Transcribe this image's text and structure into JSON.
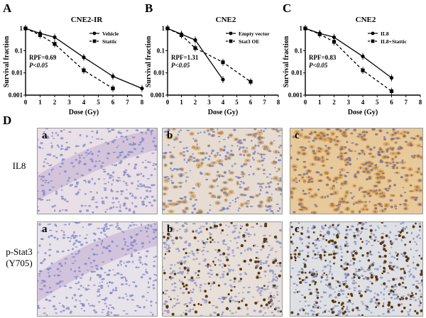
{
  "figure": {
    "panel_D_label": "D",
    "row_labels": [
      "IL8",
      "p-Stat3",
      "(Y705)"
    ],
    "sub_labels": [
      "a",
      "b",
      "c",
      "a",
      "b",
      "c"
    ]
  },
  "chart_data": [
    {
      "type": "line",
      "panel": "A",
      "title": "CNE2-IR",
      "xlabel": "Dose (Gy)",
      "ylabel": "Survival fraction",
      "xlim": [
        0,
        8
      ],
      "ylim": [
        0.001,
        1
      ],
      "yscale": "log",
      "xticks": [
        "0",
        "1",
        "2",
        "3",
        "4",
        "5",
        "6",
        "7",
        "8"
      ],
      "yticks": [
        "0.001",
        "0.01",
        "0.1",
        "1"
      ],
      "legend_position": "top-right",
      "annotation": [
        "RPF=0.69",
        "P<0.05"
      ],
      "series": [
        {
          "name": "Vehicle",
          "marker": "circle",
          "line": "solid",
          "x": [
            0,
            1,
            2,
            4,
            6,
            8
          ],
          "y": [
            1,
            0.6,
            0.4,
            0.05,
            0.007,
            0.002
          ]
        },
        {
          "name": "Stattic",
          "marker": "square",
          "line": "dashed",
          "x": [
            0,
            1,
            2,
            4,
            6
          ],
          "y": [
            1,
            0.5,
            0.2,
            0.013,
            0.002
          ]
        }
      ]
    },
    {
      "type": "line",
      "panel": "B",
      "title": "CNE2",
      "xlabel": "Dose (Gy)",
      "ylabel": "Survival fraction",
      "xlim": [
        0,
        8
      ],
      "ylim": [
        0.001,
        1
      ],
      "yscale": "log",
      "xticks": [
        "0",
        "1",
        "2",
        "3",
        "4",
        "5",
        "6",
        "7",
        "8"
      ],
      "yticks": [
        "0.001",
        "0.01",
        "0.1",
        "1"
      ],
      "legend_position": "top-right",
      "annotation": [
        "RPF=1.31",
        "P<0.05"
      ],
      "series": [
        {
          "name": "Empty vector",
          "marker": "circle",
          "line": "solid",
          "x": [
            0,
            1,
            2,
            4
          ],
          "y": [
            1,
            0.55,
            0.3,
            0.005
          ]
        },
        {
          "name": "Stat3 OE",
          "marker": "square",
          "line": "dashed",
          "x": [
            0,
            1,
            2,
            4,
            6
          ],
          "y": [
            1,
            0.5,
            0.13,
            0.03,
            0.004
          ]
        }
      ]
    },
    {
      "type": "line",
      "panel": "C",
      "title": "CNE2",
      "xlabel": "Dose (Gy)",
      "ylabel": "Survival fraction",
      "xlim": [
        0,
        8
      ],
      "ylim": [
        0.001,
        1
      ],
      "yscale": "log",
      "xticks": [
        "0",
        "1",
        "2",
        "3",
        "4",
        "5",
        "6",
        "7",
        "8"
      ],
      "yticks": [
        "0.001",
        "0.01",
        "0.1",
        "1"
      ],
      "legend_position": "top-right",
      "annotation": [
        "RPF=0.83",
        "P<0.05"
      ],
      "series": [
        {
          "name": "IL8",
          "marker": "circle",
          "line": "solid",
          "x": [
            0,
            1,
            2,
            4,
            6
          ],
          "y": [
            1,
            0.6,
            0.4,
            0.055,
            0.006
          ]
        },
        {
          "name": "IL8+Stattic",
          "marker": "square",
          "line": "dashed",
          "x": [
            0,
            1,
            2,
            4,
            6
          ],
          "y": [
            1,
            0.55,
            0.25,
            0.013,
            0.0015
          ]
        }
      ]
    }
  ]
}
